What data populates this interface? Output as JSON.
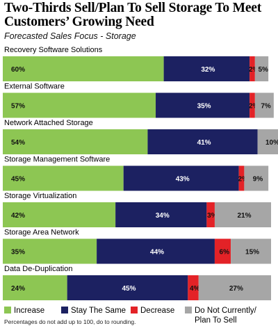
{
  "chart_data": {
    "type": "bar",
    "orientation": "horizontal",
    "stacked": true,
    "title": "Two-Thirds Sell/Plan To Sell Storage To Meet Customers’ Growing Need",
    "subtitle": "Forecasted Sales Focus - Storage",
    "categories": [
      "Recovery Software Solutions",
      "External Software",
      "Network Attached Storage",
      "Storage Management Software",
      "Storage Virtualization",
      "Storage  Area Network",
      "Data De-Duplication"
    ],
    "series": [
      {
        "name": "Increase",
        "color": "#8dc653",
        "values": [
          60,
          57,
          54,
          45,
          42,
          35,
          24
        ]
      },
      {
        "name": "Stay The Same",
        "color": "#1c2161",
        "values": [
          32,
          35,
          41,
          43,
          34,
          44,
          45
        ]
      },
      {
        "name": "Decrease",
        "color": "#e32227",
        "values": [
          2,
          2,
          0,
          2,
          3,
          6,
          4
        ]
      },
      {
        "name": "Do Not Currently/ Plan To Sell",
        "color": "#a6a6a6",
        "values": [
          5,
          7,
          10,
          9,
          21,
          15,
          27
        ]
      }
    ],
    "value_labels": [
      [
        "60%",
        "32%",
        "2%",
        "5%"
      ],
      [
        "57%",
        "35%",
        "2%",
        "7%"
      ],
      [
        "54%",
        "41%",
        "",
        "10%"
      ],
      [
        "45%",
        "43%",
        "2%",
        "9%"
      ],
      [
        "42%",
        "34%",
        "3%",
        "21%"
      ],
      [
        "35%",
        "44%",
        "6%",
        "15%"
      ],
      [
        "24%",
        "45%",
        "4%",
        "27%"
      ]
    ],
    "xlim": [
      0,
      100
    ],
    "grid": false,
    "legend_position": "bottom"
  },
  "legend": {
    "increase": "Increase",
    "stay": "Stay The Same",
    "decrease": "Decrease",
    "not_selling_line1": "Do Not Currently/",
    "not_selling_line2": "Plan To Sell"
  },
  "footnote": "Percentages do not add up to 100, do to rounding."
}
